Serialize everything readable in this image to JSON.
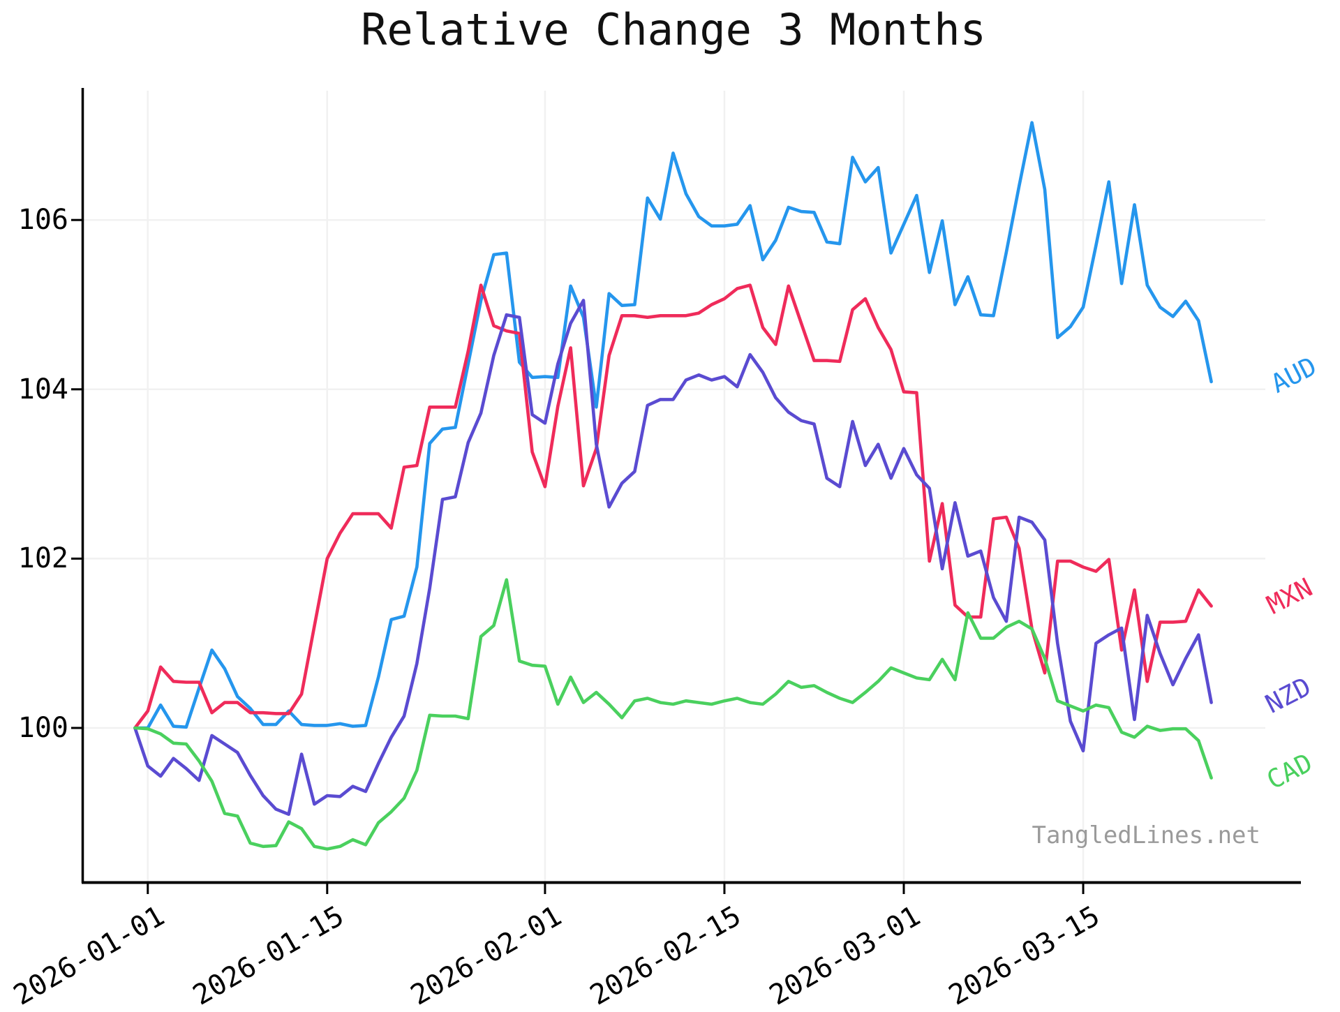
{
  "title": "Relative Change 3 Months",
  "watermark": "TangledLines.net",
  "chart_data": {
    "type": "line",
    "title": "Relative Change 3 Months",
    "xlabel": "",
    "ylabel": "",
    "grid": true,
    "ylim": [
      98.3,
      107.5
    ],
    "y_ticks": [
      "100",
      "102",
      "104",
      "106"
    ],
    "x_tick_labels": [
      {
        "index": 1,
        "label": "2026-01-01"
      },
      {
        "index": 15,
        "label": "2026-01-15"
      },
      {
        "index": 32,
        "label": "2026-02-01"
      },
      {
        "index": 46,
        "label": "2026-02-15"
      },
      {
        "index": 60,
        "label": "2026-03-01"
      },
      {
        "index": 74,
        "label": "2026-03-15"
      }
    ],
    "x_start_offset_days_before_first_tick": 1,
    "points_per_series": 85,
    "legend_position": "right-end-of-lines",
    "series": [
      {
        "name": "AUD",
        "color": "#2596ed",
        "values": [
          100.0,
          100.0,
          100.27,
          100.02,
          100.01,
          100.47,
          100.92,
          100.7,
          100.37,
          100.23,
          100.04,
          100.04,
          100.2,
          100.04,
          100.03,
          100.03,
          100.05,
          100.02,
          100.03,
          100.6,
          101.28,
          101.32,
          101.9,
          103.36,
          103.53,
          103.55,
          104.3,
          105.05,
          105.59,
          105.61,
          104.32,
          104.14,
          104.15,
          104.14,
          105.22,
          104.85,
          103.79,
          105.13,
          104.99,
          105.0,
          106.26,
          106.01,
          106.79,
          106.31,
          106.04,
          105.93,
          105.93,
          105.95,
          106.17,
          105.53,
          105.76,
          106.15,
          106.1,
          106.09,
          105.74,
          105.72,
          106.74,
          106.45,
          106.62,
          105.61,
          105.95,
          106.29,
          105.38,
          105.99,
          105.0,
          105.33,
          104.88,
          104.87,
          105.62,
          106.4,
          107.15,
          106.36,
          104.61,
          104.74,
          104.97,
          105.7,
          106.45,
          105.25,
          106.18,
          105.23,
          104.97,
          104.86,
          105.04,
          104.81,
          104.09
        ]
      },
      {
        "name": "MXN",
        "color": "#ef2b5a",
        "values": [
          100.0,
          100.2,
          100.72,
          100.55,
          100.54,
          100.54,
          100.18,
          100.3,
          100.3,
          100.18,
          100.18,
          100.17,
          100.17,
          100.4,
          101.2,
          102.0,
          102.3,
          102.53,
          102.53,
          102.53,
          102.36,
          103.08,
          103.1,
          103.79,
          103.79,
          103.79,
          104.45,
          105.23,
          104.75,
          104.69,
          104.66,
          103.26,
          102.85,
          103.8,
          104.49,
          102.86,
          103.3,
          104.4,
          104.87,
          104.87,
          104.85,
          104.87,
          104.87,
          104.87,
          104.9,
          105.0,
          105.07,
          105.19,
          105.23,
          104.73,
          104.53,
          105.22,
          104.78,
          104.34,
          104.34,
          104.33,
          104.94,
          105.07,
          104.73,
          104.47,
          103.97,
          103.96,
          101.97,
          102.65,
          101.45,
          101.31,
          101.31,
          102.47,
          102.49,
          102.12,
          101.17,
          100.65,
          101.97,
          101.97,
          101.9,
          101.85,
          101.99,
          100.92,
          101.63,
          100.55,
          101.25,
          101.25,
          101.26,
          101.63,
          101.44
        ]
      },
      {
        "name": "NZD",
        "color": "#5a4bd1",
        "values": [
          100.0,
          99.55,
          99.43,
          99.64,
          99.52,
          99.38,
          99.91,
          99.81,
          99.71,
          99.44,
          99.2,
          99.04,
          98.98,
          99.69,
          99.1,
          99.2,
          99.19,
          99.31,
          99.25,
          99.58,
          99.89,
          100.14,
          100.76,
          101.65,
          102.7,
          102.73,
          103.37,
          103.72,
          104.4,
          104.88,
          104.85,
          103.7,
          103.6,
          104.3,
          104.78,
          105.05,
          103.35,
          102.61,
          102.89,
          103.03,
          103.81,
          103.88,
          103.88,
          104.11,
          104.17,
          104.11,
          104.15,
          104.03,
          104.41,
          104.2,
          103.9,
          103.73,
          103.63,
          103.59,
          102.95,
          102.85,
          103.62,
          103.1,
          103.35,
          102.95,
          103.3,
          102.99,
          102.83,
          101.88,
          102.66,
          102.03,
          102.09,
          101.54,
          101.26,
          102.49,
          102.43,
          102.22,
          101.0,
          100.08,
          99.73,
          101.0,
          101.1,
          101.18,
          100.1,
          101.33,
          100.88,
          100.51,
          100.82,
          101.1,
          100.3
        ]
      },
      {
        "name": "CAD",
        "color": "#4ad05e",
        "values": [
          100.0,
          99.99,
          99.93,
          99.82,
          99.81,
          99.61,
          99.37,
          98.99,
          98.96,
          98.64,
          98.6,
          98.61,
          98.89,
          98.81,
          98.6,
          98.57,
          98.6,
          98.68,
          98.62,
          98.88,
          99.01,
          99.17,
          99.5,
          100.15,
          100.14,
          100.14,
          100.11,
          101.08,
          101.21,
          101.75,
          100.79,
          100.74,
          100.73,
          100.28,
          100.6,
          100.3,
          100.42,
          100.28,
          100.12,
          100.32,
          100.35,
          100.3,
          100.28,
          100.32,
          100.3,
          100.28,
          100.32,
          100.35,
          100.3,
          100.28,
          100.4,
          100.55,
          100.48,
          100.5,
          100.42,
          100.35,
          100.3,
          100.42,
          100.55,
          100.71,
          100.65,
          100.59,
          100.57,
          100.81,
          100.57,
          101.36,
          101.06,
          101.06,
          101.19,
          101.26,
          101.17,
          100.82,
          100.32,
          100.26,
          100.2,
          100.27,
          100.24,
          99.95,
          99.89,
          100.02,
          99.97,
          99.99,
          99.99,
          99.85,
          99.41
        ]
      }
    ]
  }
}
